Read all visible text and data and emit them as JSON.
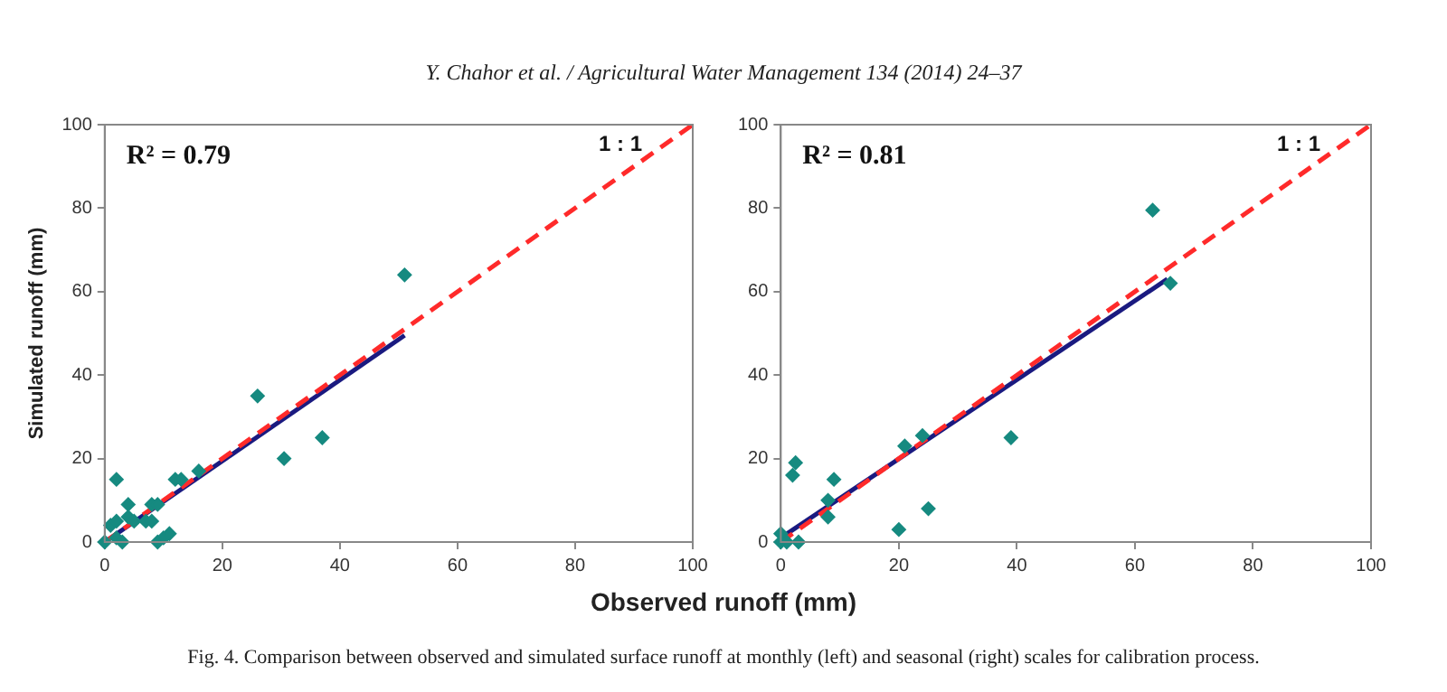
{
  "chart_data": [
    {
      "type": "scatter",
      "title": "Y. Chahor et al. / Agricultural Water Management 134 (2014) 24–37",
      "xlabel": "Observed runoff (mm)",
      "ylabel": "Simulated runoff (mm)",
      "xlim": [
        0,
        100
      ],
      "ylim": [
        0,
        100
      ],
      "xticks": [
        0,
        20,
        40,
        60,
        80,
        100
      ],
      "yticks": [
        0,
        20,
        40,
        60,
        80,
        100
      ],
      "grid": false,
      "legend": false,
      "marker": "diamond",
      "annotations": [
        "R² = 0.79",
        "1 : 1"
      ],
      "series": [
        {
          "type": "line",
          "color": "#ff2a2a",
          "line_style": "dashed",
          "marker": "none",
          "x": [
            0,
            100
          ],
          "values": [
            0,
            100
          ]
        },
        {
          "type": "line",
          "color": "#1a1a80",
          "line_style": "solid",
          "marker": "none",
          "x": [
            0,
            51
          ],
          "values": [
            0,
            49.5
          ]
        },
        {
          "type": "scatter",
          "color": "#168a80",
          "x": [
            0,
            1,
            2,
            2,
            2,
            3,
            4,
            4,
            5,
            7,
            8,
            8,
            9,
            9,
            10,
            11,
            12,
            13,
            16,
            26,
            30.5,
            37,
            51
          ],
          "values": [
            0,
            4,
            15,
            5,
            1,
            0,
            9,
            6,
            5,
            5,
            5,
            9,
            0,
            9,
            1,
            2,
            15,
            15,
            17,
            35,
            20,
            25,
            64
          ]
        }
      ]
    },
    {
      "type": "scatter",
      "xlim": [
        0,
        100
      ],
      "ylim": [
        0,
        100
      ],
      "xticks": [
        0,
        20,
        40,
        60,
        80,
        100
      ],
      "yticks": [
        0,
        20,
        40,
        60,
        80,
        100
      ],
      "grid": false,
      "legend": false,
      "marker": "diamond",
      "annotations": [
        "R² = 0.81",
        "1 : 1",
        "Fig. 4. Comparison between observed and simulated surface runoff at monthly (left) and seasonal (right) scales for calibration process."
      ],
      "series": [
        {
          "type": "line",
          "color": "#ff2a2a",
          "line_style": "dashed",
          "marker": "none",
          "x": [
            0,
            100
          ],
          "values": [
            0,
            100
          ]
        },
        {
          "type": "line",
          "color": "#1a1a80",
          "line_style": "solid",
          "marker": "none",
          "x": [
            0,
            65.5
          ],
          "values": [
            1,
            63
          ]
        },
        {
          "type": "scatter",
          "color": "#168a80",
          "x": [
            0,
            0,
            1,
            2,
            2.5,
            3,
            8,
            8,
            9,
            20,
            21,
            24,
            25,
            39,
            63,
            66
          ],
          "values": [
            0,
            2,
            0,
            16,
            19,
            0,
            6,
            10,
            15,
            3,
            23,
            25.5,
            8,
            25,
            79.5,
            62
          ]
        }
      ]
    }
  ]
}
